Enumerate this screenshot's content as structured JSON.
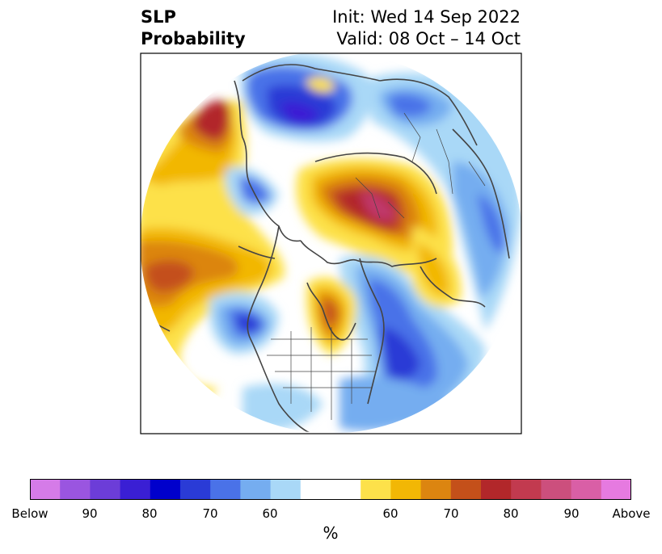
{
  "title": {
    "left_line1": "SLP",
    "left_line2": "Probability",
    "right_line1": "Init: Wed 14 Sep 2022",
    "right_line2": "Valid: 08 Oct – 14 Oct"
  },
  "map": {
    "projection": "north-polar-stereographic",
    "variable": "SLP",
    "colors": {
      "below_90plus": "#9b59e0",
      "below_80": "#2a3bd6",
      "below_70": "#4a72e8",
      "below_60": "#75adf0",
      "below_50": "#a9d8f7",
      "neutral": "#ffffff",
      "above_50": "#fde14a",
      "above_60": "#f2b705",
      "above_70": "#dc8510",
      "above_80": "#c4501a",
      "above_90": "#b2272a",
      "above_max": "#c0396a",
      "coastline": "#444444"
    }
  },
  "colorbar": {
    "segments": [
      "#d57be8",
      "#9a55e0",
      "#6c3dd8",
      "#3a1fd4",
      "#0000cc",
      "#2a3bd6",
      "#4a72e8",
      "#75adf0",
      "#a9d8f7",
      "#ffffff",
      "#fde14a",
      "#f2b705",
      "#dc8510",
      "#c4501a",
      "#b2272a",
      "#c23a4f",
      "#cc4f7d",
      "#d95fa6",
      "#e67ae0"
    ],
    "tick_labels": [
      "Below",
      "90",
      "80",
      "70",
      "60",
      "60",
      "70",
      "80",
      "90",
      "Above"
    ],
    "unit": "%"
  }
}
